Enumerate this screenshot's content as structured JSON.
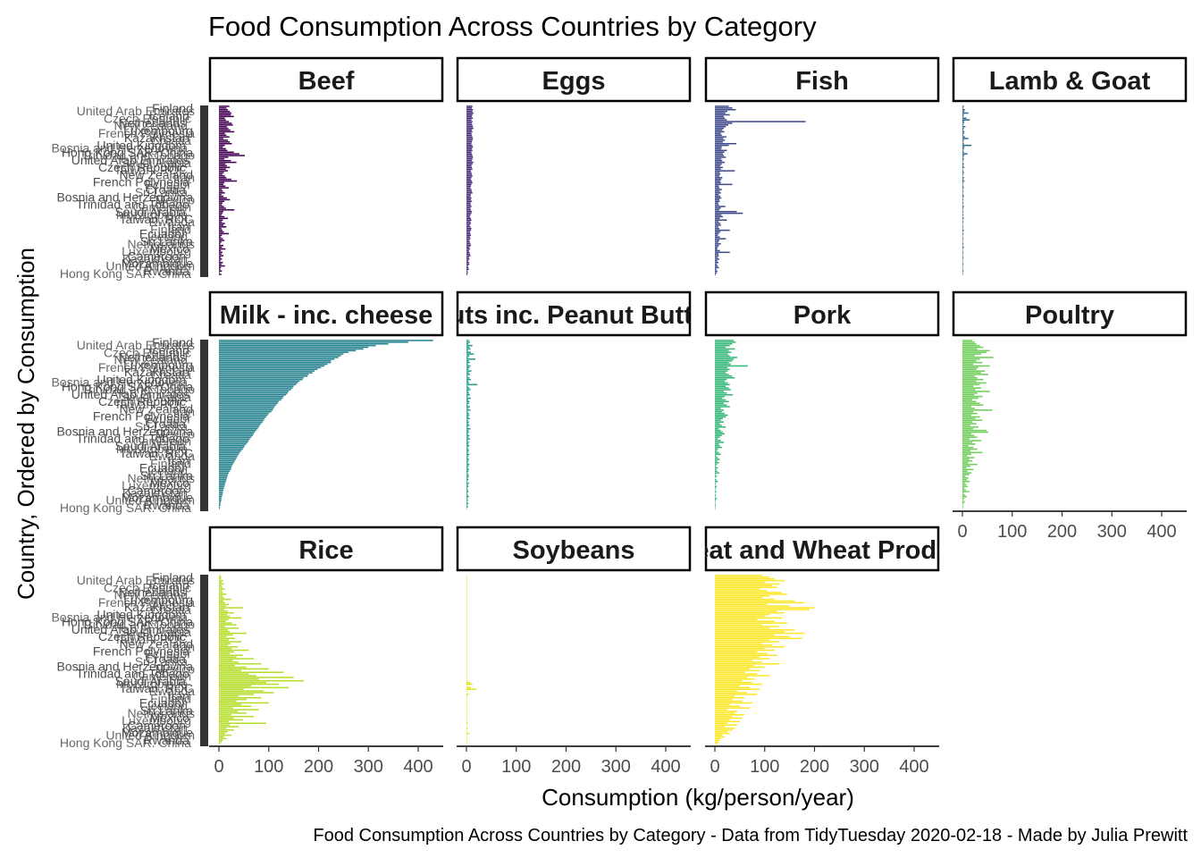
{
  "chart_data": {
    "type": "bar",
    "orientation": "horizontal",
    "title": "Food Consumption Across Countries by Category",
    "xlabel": "Consumption (kg/person/year)",
    "ylabel": "Country, Ordered by Consumption",
    "caption": "Food Consumption Across Countries by Category - Data from TidyTuesday 2020-02-18 - Made by Julia Prewitt",
    "xlim": [
      0,
      450
    ],
    "x_ticks": [
      "0",
      "100",
      "200",
      "300",
      "400"
    ],
    "grid": false,
    "legend": "none",
    "visible_country_labels": [
      "Finland",
      "Iceland",
      "Netherlands",
      "Luxembourg",
      "Kazakhstan",
      "United Kingdom",
      "Hong Kong SAR. China",
      "United Arab Emirates",
      "Czech Republic",
      "New Zealand",
      "French Polynesia",
      "Croatia",
      "Bosnia and Herzegovina",
      "Trinidad and Tobago",
      "Saudi Arabia",
      "Taiwan. ROC",
      "Iran",
      "Ecuador",
      "Sri Lanka",
      "Mexico",
      "Cameroon",
      "Mozambique",
      "Rwanda"
    ],
    "facets": [
      {
        "name": "Beef",
        "color": "#440154",
        "values": [
          21,
          15,
          18,
          22,
          25,
          24,
          30,
          12,
          14,
          20,
          26,
          28,
          16,
          19,
          23,
          31,
          12,
          15,
          21,
          9,
          18,
          22,
          26,
          12,
          8,
          14,
          17,
          30,
          41,
          52,
          19,
          11,
          24,
          35,
          13,
          16,
          22,
          14,
          18,
          10,
          7,
          12,
          15,
          25,
          36,
          11,
          9,
          13,
          20,
          6,
          8,
          12,
          5,
          9,
          16,
          22,
          11,
          7,
          6,
          10,
          14,
          31,
          9,
          7,
          5,
          11,
          18,
          8,
          6,
          12,
          9,
          15,
          5,
          7,
          10,
          20,
          6,
          4,
          8,
          11,
          5,
          3,
          9,
          6,
          13,
          4,
          7,
          5,
          9,
          4,
          6,
          3,
          8,
          5,
          12,
          4,
          3,
          6,
          2,
          5
        ]
      },
      {
        "name": "Eggs",
        "color": "#482878",
        "values": [
          12,
          11,
          13,
          12,
          14,
          12,
          11,
          13,
          10,
          12,
          11,
          12,
          13,
          14,
          11,
          12,
          10,
          11,
          12,
          13,
          12,
          11,
          10,
          12,
          13,
          11,
          12,
          10,
          11,
          12,
          13,
          12,
          11,
          14,
          12,
          10,
          11,
          12,
          9,
          10,
          11,
          12,
          10,
          9,
          11,
          12,
          10,
          9,
          8,
          10,
          11,
          12,
          9,
          8,
          10,
          9,
          11,
          8,
          9,
          10,
          8,
          9,
          11,
          10,
          8,
          7,
          9,
          10,
          8,
          9,
          7,
          8,
          10,
          9,
          7,
          8,
          9,
          7,
          8,
          6,
          7,
          8,
          9,
          6,
          7,
          5,
          6,
          7,
          8,
          5,
          6,
          4,
          5,
          6,
          3,
          4,
          5,
          2,
          3,
          2
        ]
      },
      {
        "name": "Fish",
        "color": "#3e4a89",
        "values": [
          28,
          35,
          42,
          25,
          21,
          30,
          18,
          20,
          24,
          182,
          35,
          27,
          22,
          18,
          15,
          19,
          12,
          14,
          23,
          17,
          20,
          16,
          43,
          28,
          14,
          13,
          24,
          19,
          16,
          18,
          22,
          13,
          15,
          20,
          14,
          11,
          16,
          12,
          40,
          10,
          11,
          9,
          15,
          13,
          11,
          12,
          35,
          8,
          9,
          14,
          10,
          12,
          8,
          11,
          13,
          9,
          10,
          7,
          8,
          21,
          12,
          9,
          44,
          56,
          13,
          16,
          10,
          24,
          8,
          11,
          12,
          7,
          9,
          30,
          11,
          8,
          6,
          10,
          22,
          9,
          7,
          12,
          8,
          6,
          5,
          10,
          30,
          7,
          8,
          6,
          9,
          5,
          7,
          4,
          6,
          8,
          3,
          5,
          4,
          2
        ]
      },
      {
        "name": "Lamb & Goat",
        "color": "#31688e",
        "values": [
          3,
          2,
          5,
          4,
          12,
          3,
          2,
          8,
          15,
          4,
          3,
          2,
          6,
          3,
          2,
          4,
          3,
          2,
          5,
          12,
          3,
          2,
          3,
          18,
          4,
          3,
          2,
          3,
          10,
          4,
          2,
          3,
          2,
          1,
          3,
          2,
          4,
          1,
          2,
          3,
          2,
          1,
          3,
          2,
          4,
          2,
          1,
          2,
          3,
          1,
          2,
          1,
          2,
          3,
          1,
          2,
          1,
          2,
          1,
          3,
          2,
          1,
          2,
          1,
          2,
          1,
          3,
          1,
          2,
          1,
          1,
          2,
          1,
          3,
          1,
          2,
          1,
          1,
          2,
          1,
          1,
          2,
          1,
          3,
          1,
          1,
          2,
          1,
          1,
          2,
          1,
          1,
          1,
          2,
          1,
          1,
          1,
          2,
          1,
          1
        ]
      },
      {
        "name": "Milk - inc. cheese",
        "color": "#26828e",
        "values": [
          430,
          380,
          340,
          315,
          300,
          290,
          275,
          260,
          250,
          245,
          240,
          232,
          225,
          225,
          218,
          212,
          205,
          198,
          192,
          188,
          180,
          178,
          170,
          168,
          162,
          158,
          155,
          150,
          148,
          145,
          140,
          138,
          135,
          130,
          128,
          125,
          120,
          118,
          115,
          112,
          110,
          108,
          105,
          100,
          98,
          95,
          92,
          90,
          88,
          85,
          82,
          80,
          78,
          75,
          72,
          70,
          68,
          65,
          62,
          60,
          58,
          55,
          52,
          50,
          48,
          45,
          42,
          40,
          38,
          36,
          34,
          32,
          30,
          28,
          26,
          25,
          24,
          22,
          20,
          18,
          17,
          16,
          15,
          14,
          13,
          12,
          11,
          10,
          9,
          8,
          8,
          7,
          6,
          5,
          5,
          4,
          3,
          3,
          2,
          2
        ]
      },
      {
        "name": "Nuts inc. Peanut Butter",
        "color": "#1f9e89",
        "values": [
          5,
          7,
          4,
          12,
          6,
          8,
          3,
          9,
          15,
          6,
          4,
          18,
          5,
          7,
          3,
          8,
          6,
          4,
          10,
          5,
          7,
          3,
          6,
          9,
          4,
          5,
          22,
          3,
          6,
          8,
          4,
          5,
          7,
          3,
          9,
          4,
          6,
          5,
          3,
          7,
          4,
          8,
          3,
          5,
          6,
          4,
          7,
          3,
          5,
          4,
          6,
          3,
          8,
          4,
          5,
          3,
          6,
          4,
          7,
          3,
          5,
          4,
          6,
          3,
          4,
          5,
          3,
          6,
          4,
          3,
          5,
          4,
          3,
          6,
          4,
          3,
          5,
          4,
          3,
          4,
          5,
          3,
          4,
          2,
          5,
          3,
          4,
          2,
          3,
          4,
          2,
          3,
          5,
          2,
          3,
          2,
          4,
          2,
          3,
          1
        ]
      },
      {
        "name": "Pork",
        "color": "#35b779",
        "values": [
          38,
          42,
          35,
          30,
          22,
          40,
          28,
          33,
          26,
          30,
          45,
          38,
          35,
          28,
          32,
          66,
          25,
          30,
          26,
          22,
          28,
          35,
          40,
          24,
          20,
          26,
          30,
          22,
          28,
          32,
          18,
          24,
          36,
          20,
          15,
          22,
          28,
          18,
          24,
          30,
          12,
          18,
          14,
          20,
          26,
          22,
          16,
          12,
          18,
          10,
          14,
          22,
          8,
          12,
          16,
          20,
          14,
          10,
          6,
          12,
          18,
          8,
          10,
          14,
          6,
          4,
          8,
          12,
          3,
          6,
          10,
          5,
          8,
          4,
          2,
          6,
          3,
          5,
          9,
          2,
          4,
          1,
          3,
          6,
          2,
          1,
          4,
          2,
          1,
          3,
          1,
          2,
          1,
          4,
          2,
          1,
          1,
          2,
          1,
          1
        ]
      },
      {
        "name": "Poultry",
        "color": "#6ece58",
        "values": [
          20,
          25,
          28,
          35,
          42,
          30,
          55,
          48,
          38,
          25,
          62,
          35,
          28,
          40,
          22,
          55,
          32,
          28,
          45,
          38,
          52,
          25,
          30,
          42,
          28,
          48,
          35,
          22,
          38,
          26,
          55,
          30,
          24,
          40,
          32,
          20,
          28,
          35,
          42,
          18,
          25,
          60,
          22,
          30,
          18,
          35,
          26,
          40,
          20,
          28,
          16,
          32,
          22,
          48,
          52,
          18,
          24,
          30,
          14,
          38,
          20,
          26,
          12,
          22,
          30,
          16,
          40,
          18,
          10,
          24,
          14,
          20,
          12,
          30,
          16,
          8,
          22,
          10,
          18,
          14,
          6,
          12,
          9,
          15,
          5,
          8,
          11,
          4,
          7,
          14,
          3,
          6,
          9,
          4,
          2,
          5,
          3,
          1,
          2,
          1
        ]
      },
      {
        "name": "Rice",
        "color": "#b5de2b",
        "values": [
          3,
          5,
          4,
          8,
          6,
          10,
          5,
          7,
          12,
          6,
          8,
          15,
          7,
          10,
          25,
          9,
          12,
          20,
          14,
          48,
          11,
          18,
          30,
          16,
          22,
          45,
          19,
          14,
          26,
          35,
          12,
          40,
          18,
          22,
          55,
          28,
          15,
          32,
          20,
          45,
          24,
          18,
          38,
          26,
          60,
          30,
          22,
          48,
          35,
          70,
          28,
          40,
          85,
          32,
          55,
          100,
          45,
          130,
          60,
          75,
          150,
          80,
          170,
          95,
          120,
          65,
          140,
          50,
          90,
          110,
          70,
          40,
          85,
          55,
          35,
          100,
          45,
          65,
          28,
          80,
          38,
          55,
          25,
          70,
          30,
          48,
          20,
          95,
          22,
          40,
          15,
          30,
          18,
          12,
          25,
          10,
          15,
          8,
          6,
          3
        ]
      },
      {
        "name": "Soybeans",
        "color": "#e3e418",
        "values": [
          0.1,
          0.2,
          0.1,
          0.3,
          0.1,
          0.2,
          0.1,
          0.4,
          0.1,
          0.2,
          0.3,
          0.1,
          0.2,
          0.1,
          0.5,
          0.1,
          0.3,
          0.2,
          0.1,
          0.4,
          0.1,
          0.2,
          0.6,
          0.1,
          0.3,
          0.2,
          0.1,
          0.5,
          0.2,
          0.1,
          0.8,
          0.2,
          0.1,
          0.4,
          0.3,
          1.0,
          0.2,
          0.1,
          0.5,
          0.3,
          0.2,
          1.2,
          0.4,
          0.1,
          0.6,
          0.3,
          0.2,
          0.9,
          0.5,
          0.3,
          1.5,
          0.4,
          0.6,
          0.2,
          1.0,
          0.5,
          0.8,
          0.3,
          1.4,
          0.6,
          0.9,
          0.4,
          1.8,
          8,
          12,
          0.5,
          9,
          20,
          0.8,
          1.0,
          4,
          0.6,
          1.3,
          0.7,
          1.1,
          0.5,
          1.6,
          0.8,
          0.4,
          1.2,
          0.6,
          2.0,
          0.8,
          1.0,
          0.5,
          1.5,
          0.7,
          3,
          0.9,
          0.6,
          2.5,
          0.8,
          1.2,
          5,
          0.6,
          1.0,
          2.0,
          0.8,
          0.5,
          0.3
        ]
      },
      {
        "name": "Wheat and Wheat Products",
        "color": "#fde725",
        "values": [
          95,
          110,
          120,
          140,
          100,
          130,
          115,
          125,
          90,
          105,
          135,
          145,
          110,
          95,
          120,
          160,
          180,
          105,
          150,
          200,
          190,
          125,
          140,
          110,
          100,
          135,
          85,
          120,
          145,
          95,
          130,
          110,
          160,
          140,
          180,
          120,
          150,
          175,
          110,
          130,
          95,
          115,
          140,
          100,
          120,
          85,
          105,
          125,
          90,
          110,
          75,
          95,
          130,
          80,
          100,
          70,
          90,
          60,
          85,
          110,
          65,
          80,
          55,
          75,
          95,
          50,
          70,
          90,
          45,
          65,
          85,
          40,
          60,
          35,
          55,
          75,
          30,
          50,
          70,
          25,
          45,
          40,
          60,
          35,
          55,
          30,
          50,
          25,
          45,
          20,
          40,
          35,
          25,
          30,
          15,
          20,
          12,
          10,
          8,
          5
        ]
      }
    ]
  }
}
